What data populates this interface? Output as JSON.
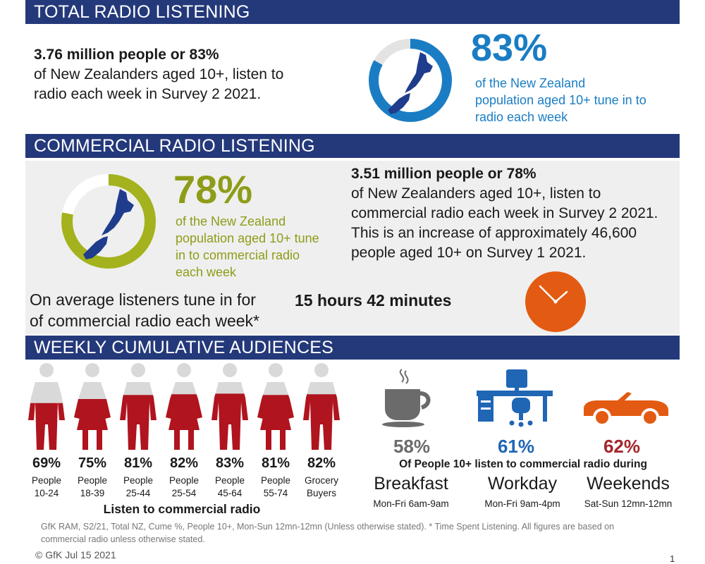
{
  "sections": {
    "total": "TOTAL RADIO LISTENING",
    "commercial": "COMMERCIAL RADIO LISTENING",
    "weekly": "WEEKLY CUMULATIVE AUDIENCES"
  },
  "total": {
    "headline": "3.76 million people or 83%",
    "line1": "of New Zealanders aged 10+, listen to",
    "line2": "radio each week in Survey 2 2021.",
    "pct": "83%",
    "pct_value": 83,
    "caption1": "of the New Zealand",
    "caption2": "population aged 10+ tune in to",
    "caption3": "radio each week",
    "color": "#1a7dc4"
  },
  "commercial": {
    "pct": "78%",
    "pct_value": 78,
    "caption1": "of the New Zealand",
    "caption2": "population aged 10+ tune",
    "caption3": "in to commercial radio",
    "caption4": "each week",
    "color": "#a3b21d",
    "headline": "3.51 million people or 78%",
    "line1": "of New Zealanders aged 10+, listen to",
    "line2": "commercial radio each week in Survey 2 2021.",
    "line3": "This is an increase of approximately 46,600",
    "line4": "people aged 10+ on Survey 1 2021.",
    "tsl_line1": "On average listeners tune in for",
    "tsl_line2": "of commercial radio each week*",
    "tsl_value": "15 hours 42 minutes",
    "clock_color": "#e35a12"
  },
  "people": [
    {
      "pct": "69%",
      "value": 69,
      "label1": "People",
      "label2": "10-24",
      "gender": "m"
    },
    {
      "pct": "75%",
      "value": 75,
      "label1": "People",
      "label2": "18-39",
      "gender": "f"
    },
    {
      "pct": "81%",
      "value": 81,
      "label1": "People",
      "label2": "25-44",
      "gender": "m"
    },
    {
      "pct": "82%",
      "value": 82,
      "label1": "People",
      "label2": "25-54",
      "gender": "f"
    },
    {
      "pct": "83%",
      "value": 83,
      "label1": "People",
      "label2": "45-64",
      "gender": "m"
    },
    {
      "pct": "81%",
      "value": 81,
      "label1": "People",
      "label2": "55-74",
      "gender": "f"
    },
    {
      "pct": "82%",
      "value": 82,
      "label1": "Grocery",
      "label2": "Buyers",
      "gender": "m"
    }
  ],
  "people_caption": "Listen to commercial radio",
  "person_color": "#b0141e",
  "dayparts": {
    "caption": "Of People 10+ listen to commercial radio during",
    "items": [
      {
        "pct": "58%",
        "name": "Breakfast",
        "time": "Mon-Fri 6am-9am",
        "color": "#6b6b6b",
        "icon": "coffee-cup-icon"
      },
      {
        "pct": "61%",
        "name": "Workday",
        "time": "Mon-Fri 9am-4pm",
        "color": "#1f66b5",
        "icon": "desk-icon"
      },
      {
        "pct": "62%",
        "name": "Weekends",
        "time": "Sat-Sun 12mn-12mn",
        "color": "#a3262b",
        "icon": "car-icon"
      }
    ]
  },
  "footnote1": "GfK RAM, S2/21, Total NZ, Cume %, People 10+, Mon-Sun 12mn-12mn (Unless otherwise stated). * Time Spent Listening. All figures are based on",
  "footnote2": "commercial radio unless otherwise stated.",
  "copyright": "© GfK Jul 15 2021",
  "page_number": "1"
}
